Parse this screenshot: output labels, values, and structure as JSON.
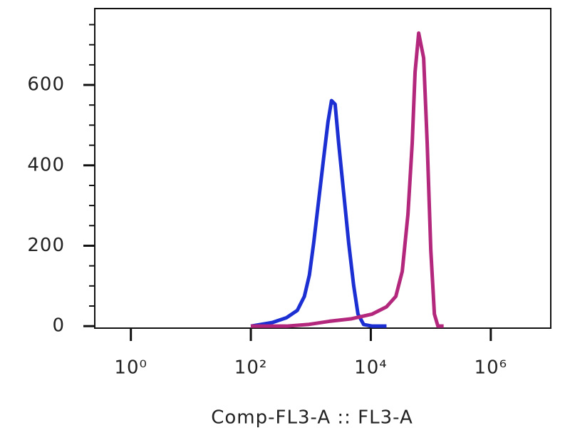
{
  "chart_data": {
    "type": "line",
    "xlabel": "Comp-FL3-A :: FL3-A",
    "xscale": "log",
    "xlim": [
      0.25,
      10000000
    ],
    "xticks": [
      {
        "value": 1,
        "label": "10⁰"
      },
      {
        "value": 100,
        "label": "10²"
      },
      {
        "value": 10000,
        "label": "10⁴"
      },
      {
        "value": 1000000,
        "label": "10⁶"
      }
    ],
    "ylim": [
      -5,
      790
    ],
    "yticks": [
      0,
      200,
      400,
      600
    ],
    "yminorticks": [
      50,
      100,
      150,
      250,
      300,
      350,
      450,
      500,
      550,
      650,
      700,
      750
    ],
    "series": [
      {
        "color": "#1b2fd3",
        "x": [
          100,
          228,
          394,
          594,
          781,
          946,
          1116,
          1352,
          1638,
          1932,
          2213,
          2541,
          2911,
          3532,
          4276,
          5178,
          6110,
          7600,
          10560,
          18270
        ],
        "values": [
          0,
          9,
          21,
          39,
          74,
          127,
          207,
          313,
          419,
          508,
          561,
          552,
          455,
          331,
          207,
          101,
          30,
          4,
          0,
          0
        ]
      },
      {
        "color": "#b3287c",
        "x": [
          100,
          394,
          896,
          2041,
          4644,
          10560,
          18270,
          26120,
          33420,
          41590,
          48980,
          54700,
          62800,
          76000,
          87100,
          100000,
          114800,
          131500,
          163700
        ],
        "values": [
          0,
          0,
          4,
          12,
          18,
          30,
          48,
          74,
          136,
          278,
          455,
          632,
          729,
          667,
          455,
          189,
          30,
          0,
          0
        ]
      }
    ]
  }
}
